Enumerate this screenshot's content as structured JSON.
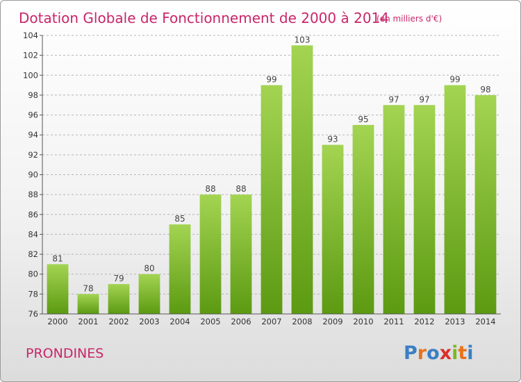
{
  "chart_data": {
    "type": "bar",
    "title": "Dotation Globale de Fonctionnement de 2000 à 2014",
    "subtitle": "(en milliers d'€)",
    "categories": [
      "2000",
      "2001",
      "2002",
      "2003",
      "2004",
      "2005",
      "2006",
      "2007",
      "2008",
      "2009",
      "2010",
      "2011",
      "2012",
      "2013",
      "2014"
    ],
    "values": [
      81,
      78,
      79,
      80,
      85,
      88,
      88,
      99,
      103,
      93,
      95,
      97,
      97,
      99,
      98
    ],
    "ylim": [
      76,
      104
    ],
    "yticks": [
      76,
      78,
      80,
      82,
      84,
      86,
      88,
      90,
      92,
      94,
      96,
      98,
      100,
      102,
      104
    ],
    "grid": "horizontal dashed",
    "bar_color": "#7fbf2e",
    "bar_color_light": "#a3d452",
    "bar_color_dark": "#5c9a12"
  },
  "footer": {
    "commune": "PRONDINES",
    "logo_letters": [
      "P",
      "r",
      "o",
      "x",
      "i",
      "t",
      "i"
    ],
    "logo_colors": [
      "#3b7fc4",
      "#e8731c",
      "#3b7fc4",
      "#d9312b",
      "#7ab929",
      "#e8731c",
      "#3b7fc4"
    ]
  },
  "colors": {
    "accent": "#c8266a",
    "axis": "#555555",
    "grid": "#b5b5b5"
  }
}
